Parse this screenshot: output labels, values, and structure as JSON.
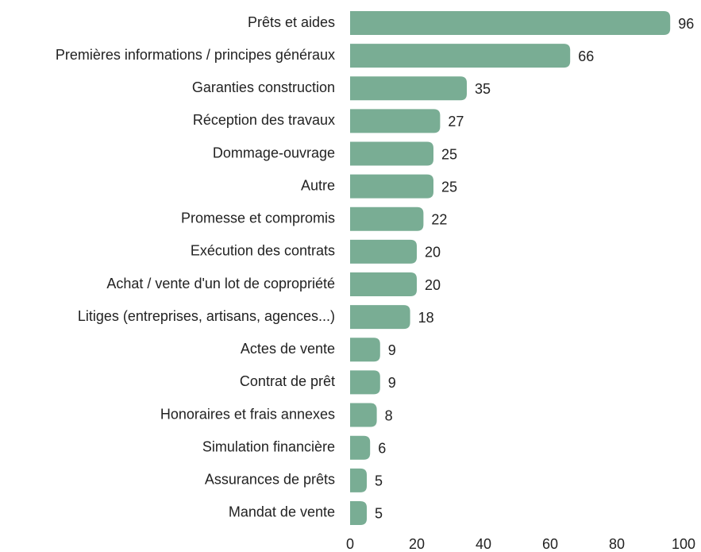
{
  "chart_data": {
    "type": "bar",
    "orientation": "horizontal",
    "categories": [
      "Prêts et aides",
      "Premières informations / principes généraux",
      "Garanties construction",
      "Réception des travaux",
      "Dommage-ouvrage",
      "Autre",
      "Promesse et compromis",
      "Exécution des contrats",
      "Achat / vente d'un lot de copropriété",
      "Litiges (entreprises, artisans, agences...)",
      "Actes de vente",
      "Contrat de prêt",
      "Honoraires et frais annexes",
      "Simulation financière",
      "Assurances de prêts",
      "Mandat de vente"
    ],
    "values": [
      96,
      66,
      35,
      27,
      25,
      25,
      22,
      20,
      20,
      18,
      9,
      9,
      8,
      6,
      5,
      5
    ],
    "color": "#79ad94",
    "xlim": [
      0,
      100
    ],
    "xticks": [
      0,
      20,
      40,
      60,
      80,
      100
    ],
    "grid": false
  }
}
